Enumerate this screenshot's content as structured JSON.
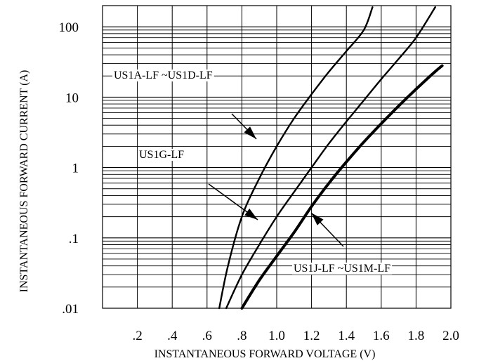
{
  "chart_data": {
    "type": "line",
    "xlabel": "INSTANTANEOUS FORWARD VOLTAGE (V)",
    "ylabel": "INSTANTANEOUS FORWARD CURRENT (A)",
    "xlim": [
      0.0,
      2.0
    ],
    "ylim": [
      0.01,
      200
    ],
    "yscale": "log",
    "grid": true,
    "x_ticks": [
      ".2",
      ".4",
      ".6",
      ".8",
      "1.0",
      "1.2",
      "1.4",
      "1.6",
      "1.8",
      "2.0"
    ],
    "y_ticks": [
      ".01",
      ".1",
      "1",
      "10",
      "100"
    ],
    "series": [
      {
        "name": "US1A-LF ~US1D-LF",
        "x": [
          0.67,
          0.72,
          0.8,
          0.9,
          1.0,
          1.1,
          1.2,
          1.3,
          1.4,
          1.5,
          1.55
        ],
        "y": [
          0.01,
          0.04,
          0.2,
          0.7,
          2.0,
          5.0,
          11.0,
          23.0,
          45.0,
          90.0,
          190.0
        ]
      },
      {
        "name": "US1G-LF",
        "x": [
          0.71,
          0.8,
          0.9,
          1.0,
          1.1,
          1.2,
          1.3,
          1.4,
          1.5,
          1.6,
          1.7,
          1.8,
          1.91
        ],
        "y": [
          0.01,
          0.03,
          0.08,
          0.2,
          0.45,
          1.0,
          2.2,
          4.5,
          9.0,
          18.0,
          35.0,
          70.0,
          190.0
        ]
      },
      {
        "name": "US1J-LF ~US1M-LF",
        "x": [
          0.8,
          0.9,
          1.0,
          1.1,
          1.2,
          1.3,
          1.4,
          1.5,
          1.6,
          1.7,
          1.8,
          1.9,
          1.95
        ],
        "y": [
          0.01,
          0.025,
          0.055,
          0.12,
          0.28,
          0.6,
          1.2,
          2.3,
          4.2,
          7.5,
          13.0,
          22.0,
          28.0
        ]
      }
    ],
    "annotations": [
      "US1A-LF ~US1D-LF",
      "US1G-LF",
      "US1J-LF ~US1M-LF"
    ],
    "series_stroke": [
      "normal",
      "normal",
      "bold"
    ],
    "color": "#000000"
  }
}
